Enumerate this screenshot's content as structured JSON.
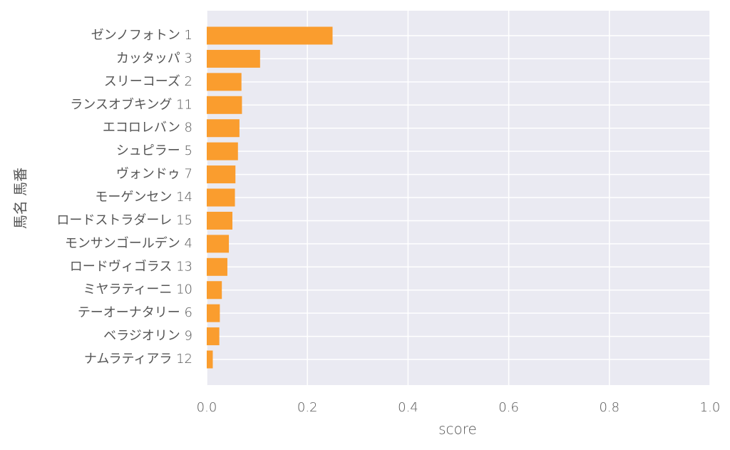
{
  "chart_data": {
    "type": "barh",
    "xlabel": "score",
    "ylabel": "馬名 馬番",
    "categories": [
      "ゼンノフォトン 1",
      "カッタッパ 3",
      "スリーコーズ 2",
      "ランスオブキング 11",
      "エコロレバン 8",
      "シュピラー 5",
      "ヴォンドゥ 7",
      "モーゲンセン 14",
      "ロードストラダーレ 15",
      "モンサンゴールデン 4",
      "ロードヴィゴラス 13",
      "ミヤラティーニ 10",
      "テーオーナタリー 6",
      "ベラジオリン 9",
      "ナムラティアラ 12"
    ],
    "values": [
      0.25,
      0.106,
      0.069,
      0.07,
      0.065,
      0.062,
      0.057,
      0.056,
      0.051,
      0.044,
      0.041,
      0.03,
      0.026,
      0.025,
      0.012
    ],
    "color": "#fa9d2e",
    "xlim": [
      0,
      1
    ],
    "xticks": [
      {
        "value": 0,
        "label": "0.0"
      },
      0.2,
      0.4,
      0.6,
      0.8,
      {
        "value": 1,
        "label": "1.0"
      }
    ],
    "grid": true
  }
}
